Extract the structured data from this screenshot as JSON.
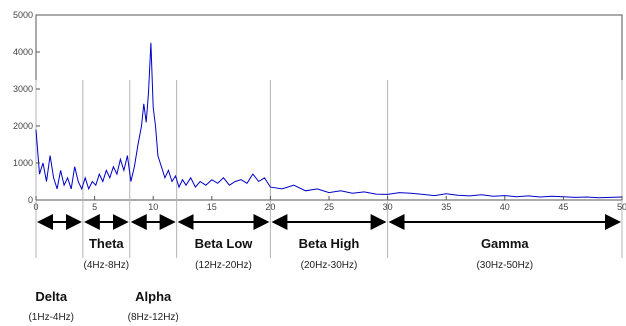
{
  "chart_data": {
    "type": "line",
    "title": "",
    "xlabel": "",
    "ylabel": "",
    "xlim": [
      0,
      50
    ],
    "ylim": [
      0,
      5000
    ],
    "x_ticks": [
      0,
      5,
      10,
      15,
      20,
      25,
      30,
      35,
      40,
      45,
      50
    ],
    "y_ticks": [
      0,
      1000,
      2000,
      3000,
      4000,
      5000
    ],
    "series_color": "#0000c8",
    "band_line_color": "#b4b4b4",
    "series": [
      {
        "x": [
          0,
          0.3,
          0.6,
          0.9,
          1.2,
          1.5,
          1.8,
          2.1,
          2.4,
          2.7,
          3.0,
          3.3,
          3.6,
          3.9,
          4.2,
          4.5,
          4.8,
          5.1,
          5.4,
          5.7,
          6.0,
          6.3,
          6.6,
          6.9,
          7.2,
          7.5,
          7.8,
          8.1,
          8.4,
          8.7,
          9.0,
          9.2,
          9.4,
          9.6,
          9.8,
          10.0,
          10.2,
          10.4,
          10.6,
          10.8,
          11.0,
          11.3,
          11.6,
          11.9,
          12.2,
          12.5,
          12.8,
          13.2,
          13.6,
          14.0,
          14.5,
          15.0,
          15.5,
          16.0,
          16.5,
          17.0,
          17.5,
          18.0,
          18.5,
          19.0,
          19.5,
          20.0,
          21.0,
          22.0,
          23.0,
          24.0,
          25.0,
          26.0,
          27.0,
          28.0,
          29.0,
          30.0,
          31.0,
          32.0,
          33.0,
          34.0,
          35.0,
          36.0,
          37.0,
          38.0,
          39.0,
          40.0,
          41.0,
          42.0,
          43.0,
          44.0,
          45.0,
          46.0,
          47.0,
          48.0,
          49.0,
          50.0
        ],
        "y": [
          1900,
          700,
          1000,
          500,
          1200,
          600,
          300,
          800,
          400,
          600,
          300,
          900,
          500,
          300,
          600,
          300,
          500,
          400,
          700,
          500,
          800,
          600,
          900,
          700,
          1100,
          800,
          1200,
          500,
          900,
          1500,
          2000,
          2600,
          2100,
          2900,
          4250,
          2500,
          2000,
          1200,
          1000,
          800,
          600,
          800,
          500,
          650,
          350,
          550,
          400,
          600,
          350,
          500,
          400,
          550,
          450,
          600,
          400,
          500,
          550,
          450,
          700,
          500,
          600,
          350,
          300,
          400,
          250,
          300,
          200,
          250,
          180,
          220,
          160,
          150,
          200,
          180,
          150,
          120,
          170,
          130,
          110,
          140,
          100,
          120,
          90,
          110,
          80,
          100,
          90,
          70,
          80,
          60,
          70,
          80
        ]
      }
    ],
    "band_boundaries": [
      4,
      8,
      12,
      20,
      30
    ],
    "arrow_segments": [
      [
        0,
        4
      ],
      [
        4,
        8
      ],
      [
        8,
        12
      ],
      [
        12,
        20
      ],
      [
        20,
        30
      ],
      [
        30,
        50
      ]
    ],
    "bands_upper": [
      {
        "name": "Theta",
        "range": "(4Hz-8Hz)",
        "center": 6
      },
      {
        "name": "Beta Low",
        "range": "(12Hz-20Hz)",
        "center": 16
      },
      {
        "name": "Beta High",
        "range": "(20Hz-30Hz)",
        "center": 25
      },
      {
        "name": "Gamma",
        "range": "(30Hz-50Hz)",
        "center": 40
      }
    ],
    "bands_lower": [
      {
        "name": "Delta",
        "range": "(1Hz-4Hz)",
        "center": 1.3
      },
      {
        "name": "Alpha",
        "range": "(8Hz-12Hz)",
        "center": 10
      }
    ]
  }
}
